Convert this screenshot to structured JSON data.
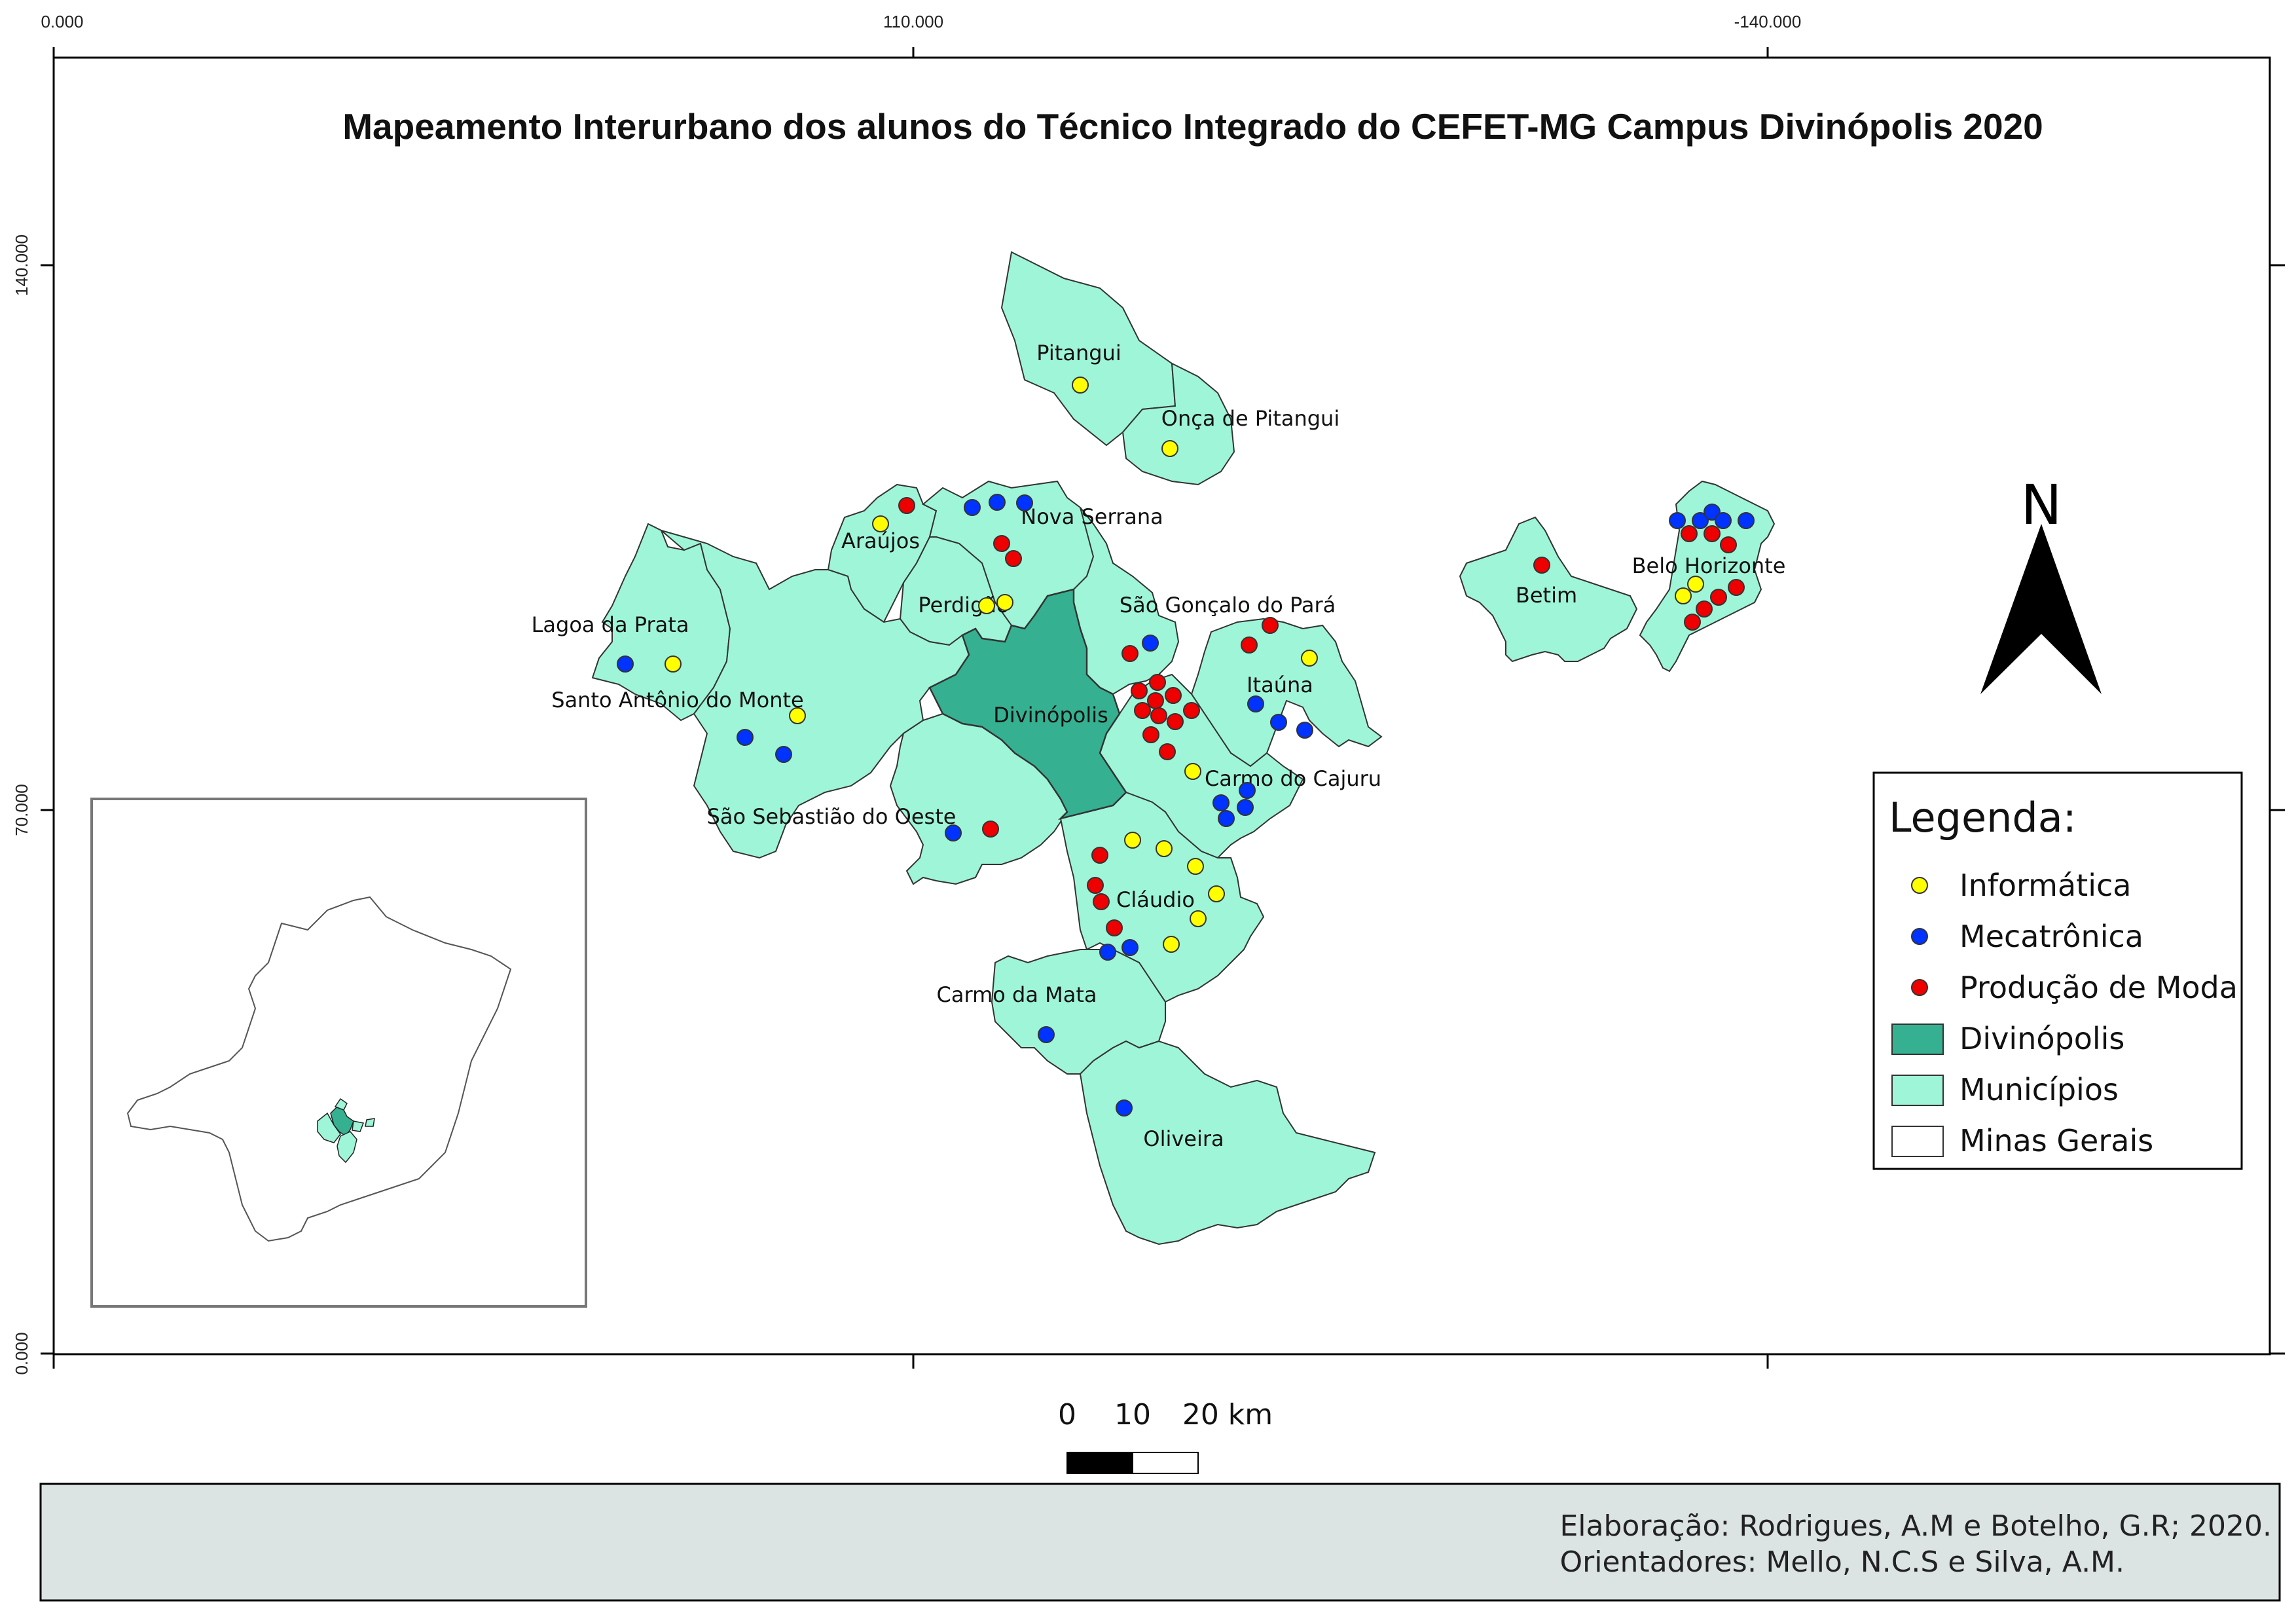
{
  "title": "Mapeamento Interurbano dos alunos do Técnico Integrado do CEFET-MG Campus Divinópolis 2020",
  "axes": {
    "top_ticks": [
      "0.000",
      "110.000",
      "-140.000"
    ],
    "left_ticks": [
      "140.000",
      "70.000",
      "0.000"
    ]
  },
  "cities": {
    "pitangui": "Pitangui",
    "onca": "Onça de Pitangui",
    "araujos": "Araújos",
    "nova_serrana": "Nova Serrana",
    "perdigao": "Perdigão",
    "lagoa_prata": "Lagoa da Prata",
    "santo_antonio": "Santo Antônio do Monte",
    "sao_goncalo": "São Gonçalo do Pará",
    "itauna": "Itaúna",
    "divinopolis": "Divinópolis",
    "carmo_cajuru": "Carmo do Cajuru",
    "sao_sebastiao": "São Sebastião do Oeste",
    "claudio": "Cláudio",
    "carmo_mata": "Carmo da Mata",
    "oliveira": "Oliveira",
    "betim": "Betim",
    "belo_horizonte": "Belo Horizonte"
  },
  "north_arrow": {
    "label": "N"
  },
  "legend": {
    "title": "Legenda:",
    "items": [
      {
        "label": "Informática",
        "color": "#ffff00",
        "symbol": "point"
      },
      {
        "label": "Mecatrônica",
        "color": "#0033ff",
        "symbol": "point"
      },
      {
        "label": "Produção de Moda",
        "color": "#ee0000",
        "symbol": "point"
      },
      {
        "label": "Divinópolis",
        "color": "#35b191",
        "symbol": "fill"
      },
      {
        "label": "Municípios",
        "color": "#9ff5d8",
        "symbol": "fill"
      },
      {
        "label": "Minas Gerais",
        "color": "#ffffff",
        "symbol": "fill"
      }
    ]
  },
  "scale_bar": {
    "labels": [
      "0",
      "10",
      "20 km"
    ]
  },
  "credits": {
    "line1": "Elaboração: Rodrigues, A.M e Botelho, G.R; 2020.",
    "line2": "Orientadores: Mello, N.C.S e Silva, A.M."
  },
  "colors": {
    "informatica": "#ffff00",
    "mecatronica": "#0033ff",
    "moda": "#ee0000",
    "divinopolis_fill": "#35b191",
    "municipios_fill": "#9ff5d8",
    "credits_bg": "#dce3e3"
  }
}
